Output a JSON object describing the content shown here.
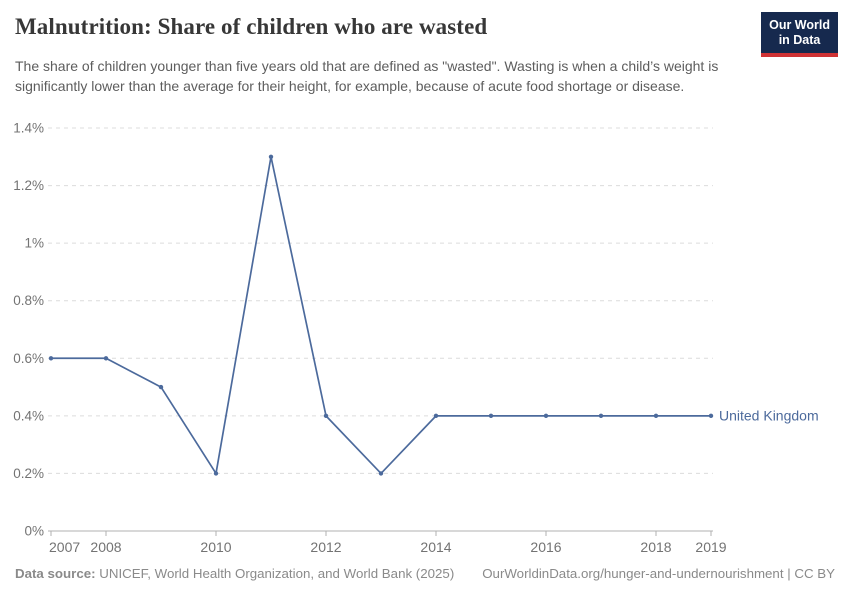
{
  "header": {
    "title": "Malnutrition: Share of children who are wasted",
    "subtitle": "The share of children younger than five years old that are defined as \"wasted\". Wasting is when a child’s weight is significantly lower than the average for their height, for example, because of acute food shortage or disease.",
    "logo": {
      "line1": "Our World",
      "line2": "in Data"
    }
  },
  "chart_data": {
    "type": "line",
    "title": "Malnutrition: Share of children who are wasted",
    "xlabel": "",
    "ylabel": "",
    "unit": "%",
    "x": [
      2007,
      2008,
      2009,
      2010,
      2011,
      2012,
      2013,
      2014,
      2015,
      2016,
      2017,
      2018,
      2019
    ],
    "series": [
      {
        "name": "United Kingdom",
        "color": "#4c6a9c",
        "values": [
          0.6,
          0.6,
          0.5,
          0.2,
          1.3,
          0.4,
          0.2,
          0.4,
          0.4,
          0.4,
          0.4,
          0.4,
          0.4
        ]
      }
    ],
    "ylim": [
      0,
      1.4
    ],
    "yticks": [
      {
        "v": 0,
        "label": "0%"
      },
      {
        "v": 0.2,
        "label": "0.2%"
      },
      {
        "v": 0.4,
        "label": "0.4%"
      },
      {
        "v": 0.6,
        "label": "0.6%"
      },
      {
        "v": 0.8,
        "label": "0.8%"
      },
      {
        "v": 1.0,
        "label": "1%"
      },
      {
        "v": 1.2,
        "label": "1.2%"
      },
      {
        "v": 1.4,
        "label": "1.4%"
      }
    ],
    "xticks": [
      2007,
      2008,
      2010,
      2012,
      2014,
      2016,
      2018,
      2019
    ],
    "grid": "horizontal-dashed",
    "legend_position": "end-of-line"
  },
  "footer": {
    "source_label": "Data source:",
    "source_text": " UNICEF, World Health Organization, and World Bank (2025)",
    "license_text": "OurWorldinData.org/hunger-and-undernourishment | CC BY"
  },
  "colors": {
    "accent": "#4c6a9c",
    "grid": "#dcdcdc",
    "axis": "#b0b0b0",
    "tick_label": "#737373",
    "title": "#373737",
    "subtitle": "#5d5d5d",
    "footer": "#8a8a8a",
    "logo_bg": "#16294e",
    "logo_bar": "#cf3235"
  }
}
